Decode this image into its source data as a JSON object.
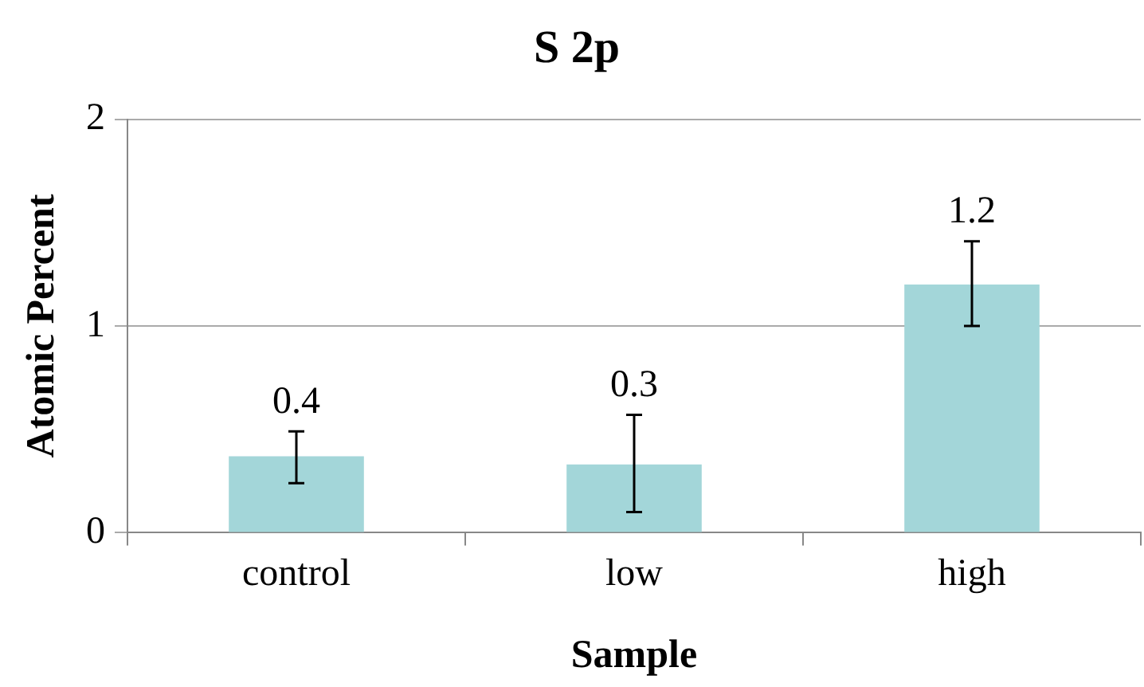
{
  "chart_data": {
    "type": "bar",
    "title": "S 2p",
    "xlabel": "Sample",
    "ylabel": "Atomic Percent",
    "categories": [
      "control",
      "low",
      "high"
    ],
    "values": [
      0.37,
      0.33,
      1.2
    ],
    "value_labels": [
      "0.4",
      "0.3",
      "1.2"
    ],
    "errors": [
      [
        0.24,
        0.49
      ],
      [
        0.1,
        0.57
      ],
      [
        1.0,
        1.41
      ]
    ],
    "color": "#a3d6d9",
    "ylim": [
      0,
      2
    ],
    "yticks": [
      0,
      1,
      2
    ],
    "grid": "y",
    "legend": false
  }
}
